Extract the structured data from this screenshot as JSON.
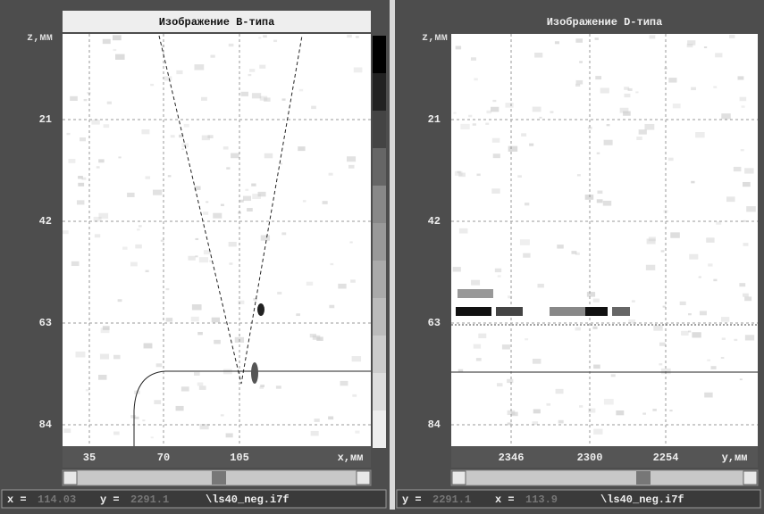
{
  "panels": [
    {
      "title": "Изображение B-типа",
      "z_axis_label": "z,мм",
      "z_ticks": [
        21,
        42,
        63,
        84
      ],
      "h_axis_label": "x,мм",
      "h_ticks": [
        35,
        70,
        105
      ],
      "status": {
        "label_1": "x =",
        "value_1": "114.03",
        "label_2": "y =",
        "value_2": "2291.1",
        "file": "\\ls40_neg.i7f"
      }
    },
    {
      "title": "Изображение D-типа",
      "z_axis_label": "z,мм",
      "z_ticks": [
        21,
        42,
        63,
        84
      ],
      "h_axis_label": "y,мм",
      "h_ticks": [
        2346,
        2300,
        2254
      ],
      "status": {
        "label_1": "y =",
        "value_1": "2291.1",
        "label_2": "x =",
        "value_2": "113.9",
        "file": "\\ls40_neg.i7f"
      }
    }
  ]
}
